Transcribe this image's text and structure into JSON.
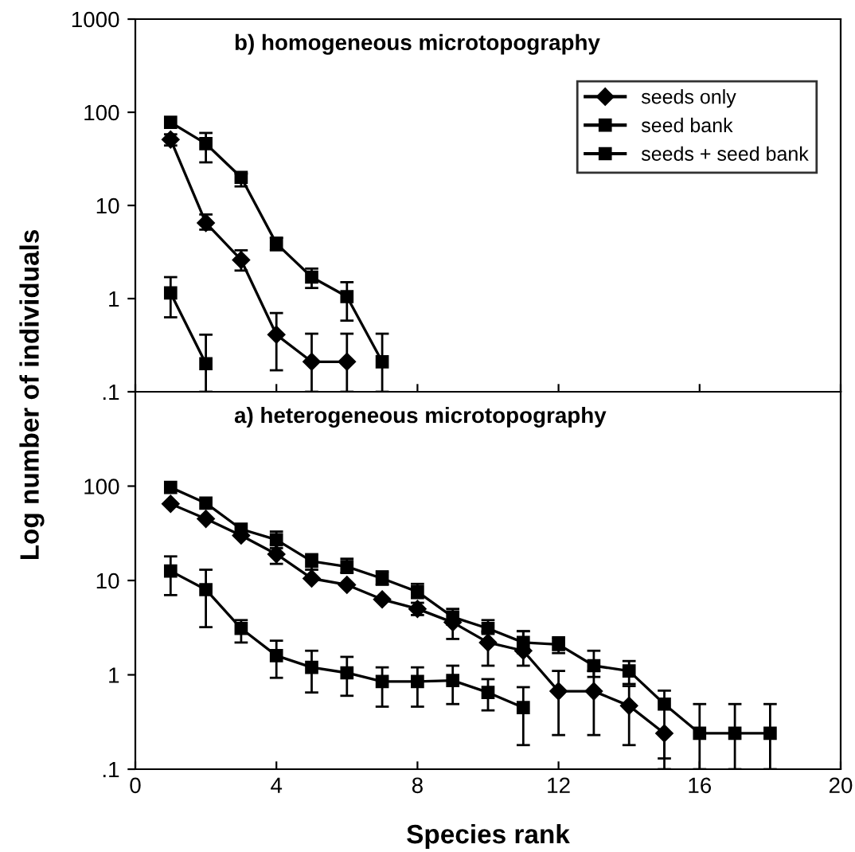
{
  "chart_data": [
    {
      "type": "line",
      "title": "b) homogeneous microtopography",
      "ylabel": "Log number of individuals",
      "log": "y",
      "xlim": [
        0,
        20
      ],
      "xticks": [
        0,
        4,
        8,
        12,
        16,
        20
      ],
      "ylim": [
        0.1,
        1000
      ],
      "yticks": [
        {
          "value": 0.1,
          "label": ".1"
        },
        1,
        10,
        100,
        1000
      ],
      "tick_labels": "y",
      "legend": "top right",
      "grid": false,
      "line_style": "solid",
      "series": [
        {
          "name": "seeds only",
          "color": "#000000",
          "marker": "diamond",
          "x": [
            1,
            2,
            3,
            4,
            5,
            6
          ],
          "values": [
            51,
            6.5,
            2.6,
            0.41,
            0.21,
            0.21
          ],
          "errors": [
            [
              44,
              58
            ],
            [
              5.5,
              8
            ],
            [
              2.0,
              3.3
            ],
            [
              0.17,
              0.7
            ],
            [
              0.1,
              0.42
            ],
            [
              0.1,
              0.42
            ]
          ]
        },
        {
          "name": "seed bank",
          "color": "#000000",
          "marker": "square",
          "x": [
            1,
            2
          ],
          "values": [
            1.15,
            0.2
          ],
          "errors": [
            [
              0.63,
              1.7
            ],
            [
              0.1,
              0.41
            ]
          ]
        },
        {
          "name": "seeds + seed bank",
          "color": "#000000",
          "marker": "square",
          "x": [
            1,
            2,
            3,
            4,
            5,
            6,
            7
          ],
          "values": [
            78,
            46,
            20,
            3.9,
            1.7,
            1.05,
            0.21
          ],
          "errors": [
            null,
            [
              29,
              60
            ],
            [
              16,
              22
            ],
            [
              3.3,
              4.5
            ],
            [
              1.3,
              2.1
            ],
            [
              0.58,
              1.5
            ],
            [
              0.1,
              0.42
            ]
          ]
        }
      ]
    },
    {
      "type": "line",
      "title": "a) heterogeneous microtopography",
      "xlabel": "Species rank",
      "log": "y",
      "xlim": [
        0,
        20
      ],
      "xticks": [
        0,
        4,
        8,
        12,
        16,
        20
      ],
      "ylim": [
        0.1,
        1000
      ],
      "yticks": [
        {
          "value": 0.1,
          "label": ".1"
        },
        1,
        10,
        100
      ],
      "grid": false,
      "line_style": "solid",
      "series": [
        {
          "color": "#000000",
          "marker": "diamond",
          "x": [
            1,
            2,
            3,
            4,
            5,
            6,
            7,
            8,
            9,
            10,
            11,
            12,
            13,
            14,
            15
          ],
          "values": [
            65,
            45,
            30,
            19,
            10.5,
            9,
            6.3,
            5,
            3.6,
            2.2,
            1.8,
            0.67,
            0.67,
            0.47,
            0.24
          ],
          "errors": [
            null,
            null,
            null,
            [
              15,
              24
            ],
            null,
            null,
            null,
            [
              4.3,
              5.8
            ],
            [
              2.4,
              4.6
            ],
            [
              1.25,
              2.9
            ],
            [
              1.25,
              2.9
            ],
            [
              0.23,
              1.1
            ],
            [
              0.23,
              1.1
            ],
            [
              0.18,
              0.76
            ],
            [
              0.1,
              0.24
            ]
          ]
        },
        {
          "color": "#000000",
          "marker": "square",
          "x": [
            1,
            2,
            3,
            4,
            5,
            6,
            7,
            8,
            9,
            10,
            11
          ],
          "values": [
            12.6,
            8,
            3.1,
            1.6,
            1.2,
            1.05,
            0.85,
            0.85,
            0.87,
            0.65,
            0.45
          ],
          "errors": [
            [
              7,
              18
            ],
            [
              3.2,
              13
            ],
            [
              2.2,
              3.8
            ],
            [
              0.93,
              2.3
            ],
            [
              0.65,
              1.8
            ],
            [
              0.6,
              1.55
            ],
            [
              0.46,
              1.2
            ],
            [
              0.46,
              1.2
            ],
            [
              0.49,
              1.25
            ],
            [
              0.42,
              0.9
            ],
            [
              0.18,
              0.74
            ]
          ]
        },
        {
          "color": "#000000",
          "marker": "square",
          "x": [
            1,
            2,
            3,
            4,
            5,
            6,
            7,
            8,
            9,
            10,
            11,
            12,
            13,
            14,
            15,
            16,
            17,
            18
          ],
          "values": [
            97,
            66,
            35,
            27,
            16,
            14,
            10.5,
            7.6,
            4.1,
            3.1,
            2.2,
            2.1,
            1.25,
            1.1,
            0.49,
            0.24,
            0.24,
            0.24
          ],
          "errors": [
            null,
            null,
            null,
            [
              22,
              33
            ],
            [
              13,
              19
            ],
            [
              12,
              17
            ],
            [
              9,
              12.5
            ],
            [
              6.5,
              9.2
            ],
            [
              3.4,
              5
            ],
            [
              2.8,
              3.8
            ],
            [
              1.7,
              2.9
            ],
            [
              1.7,
              2.5
            ],
            [
              0.95,
              1.8
            ],
            [
              0.8,
              1.4
            ],
            [
              0.13,
              0.68
            ],
            [
              0.1,
              0.49
            ],
            [
              0.1,
              0.49
            ],
            [
              0.1,
              0.49
            ]
          ]
        }
      ]
    }
  ]
}
